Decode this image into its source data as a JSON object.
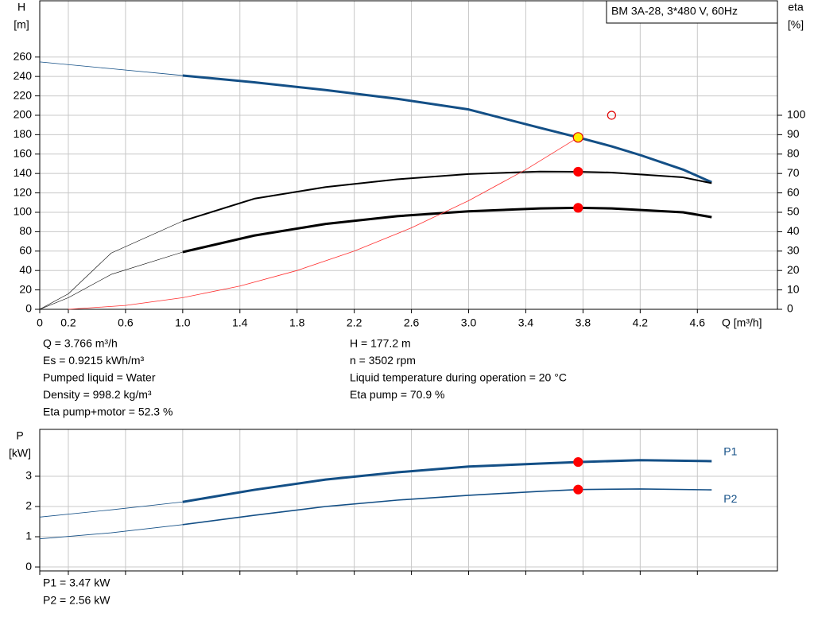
{
  "chart_data": [
    {
      "type": "line",
      "title": "BM 3A-28, 3*480 V, 60Hz",
      "ylabel": [
        "H",
        "[m]"
      ],
      "y2label": [
        "eta",
        "[%]"
      ],
      "xlabel": "Q [m³/h]",
      "xlim": [
        0,
        5.16
      ],
      "ylim": [
        0,
        318
      ],
      "y2lim": [
        0,
        159
      ],
      "grid": true,
      "xticks": [
        0,
        0.2,
        0.6,
        {
          "value": 1.0,
          "label": "1.0"
        },
        1.4,
        1.8,
        2.2,
        2.6,
        {
          "value": 3.0,
          "label": "3.0"
        },
        3.4,
        3.8,
        4.2,
        4.6
      ],
      "yticks": [
        0,
        20,
        40,
        60,
        80,
        100,
        120,
        140,
        160,
        180,
        200,
        220,
        240,
        260
      ],
      "y2ticks": [
        0,
        10,
        20,
        30,
        40,
        50,
        60,
        70,
        80,
        90,
        100
      ],
      "series": [
        {
          "color": "#134f86",
          "width": 0.8,
          "x": [
            0,
            0.5,
            1.0
          ],
          "values": [
            255,
            248,
            241
          ]
        },
        {
          "color": "#134f86",
          "width": 3,
          "x": [
            1.0,
            1.5,
            2.0,
            2.5,
            3.0,
            3.5,
            3.766,
            4.0,
            4.2,
            4.5,
            4.7
          ],
          "values": [
            241,
            234,
            226,
            217,
            206,
            187,
            177.2,
            168,
            159,
            144,
            131
          ]
        },
        {
          "color": "#000000",
          "width": 0.6,
          "axis": "y2",
          "x": [
            0,
            0.2,
            0.5,
            1.0
          ],
          "values": [
            0,
            8,
            29,
            45.5
          ]
        },
        {
          "color": "#000000",
          "width": 2,
          "axis": "y2",
          "x": [
            1.0,
            1.5,
            2.0,
            2.5,
            3.0,
            3.5,
            3.766,
            4.0,
            4.5,
            4.7
          ],
          "values": [
            45.5,
            57,
            63,
            67,
            69.7,
            71,
            70.9,
            70.5,
            68,
            65
          ]
        },
        {
          "color": "#000000",
          "width": 0.6,
          "axis": "y2",
          "x": [
            0,
            0.2,
            0.5,
            1.0
          ],
          "values": [
            0,
            6,
            18,
            29.5
          ]
        },
        {
          "color": "#000000",
          "width": 3,
          "axis": "y2",
          "x": [
            1.0,
            1.5,
            2.0,
            2.5,
            3.0,
            3.5,
            3.766,
            4.0,
            4.5,
            4.7
          ],
          "values": [
            29.5,
            38,
            44,
            48,
            50.5,
            52,
            52.3,
            52,
            50,
            47.5
          ]
        },
        {
          "color": "#ff3030",
          "width": 0.8,
          "x": [
            0.2,
            0.6,
            1.0,
            1.4,
            1.8,
            2.2,
            2.6,
            3.0,
            3.4,
            3.766
          ],
          "values": [
            0,
            4,
            12,
            24,
            40,
            60,
            84,
            112,
            144,
            177.2
          ]
        }
      ],
      "markers": [
        {
          "x": 3.766,
          "y": 70.9,
          "axis": "y2",
          "fill": "#ff0000",
          "stroke": "#ff0000",
          "r": 5.5
        },
        {
          "x": 3.766,
          "y": 52.3,
          "axis": "y2",
          "fill": "#ff0000",
          "stroke": "#ff0000",
          "r": 5.5
        },
        {
          "x": 4.0,
          "y": 200,
          "fill": "none",
          "stroke": "#e00000",
          "r": 5
        },
        {
          "x": 3.766,
          "y": 177.2,
          "fill": "#ffee00",
          "stroke": "#e00000",
          "r": 6
        }
      ]
    },
    {
      "type": "line",
      "ylabel": [
        "P",
        "[kW]"
      ],
      "xlim": [
        0,
        5.16
      ],
      "ylim": [
        -0.13,
        4.55
      ],
      "grid": true,
      "xtick_labels": false,
      "xticks": [
        0,
        0.2,
        0.6,
        1.0,
        1.4,
        1.8,
        2.2,
        2.6,
        3.0,
        3.4,
        3.8,
        4.2,
        4.6
      ],
      "yticks": [
        0,
        1,
        2,
        3
      ],
      "series": [
        {
          "color": "#134f86",
          "width": 0.8,
          "x": [
            0,
            0.5,
            1.0
          ],
          "values": [
            1.65,
            1.89,
            2.15
          ]
        },
        {
          "name": "P1",
          "label_pos": "above",
          "color": "#134f86",
          "width": 3,
          "x": [
            1.0,
            1.5,
            2.0,
            2.5,
            3.0,
            3.5,
            3.766,
            4.2,
            4.7
          ],
          "values": [
            2.15,
            2.55,
            2.89,
            3.13,
            3.32,
            3.42,
            3.47,
            3.53,
            3.5
          ]
        },
        {
          "color": "#134f86",
          "width": 0.8,
          "x": [
            0,
            0.5,
            1.0
          ],
          "values": [
            0.93,
            1.13,
            1.4
          ]
        },
        {
          "name": "P2",
          "label_pos": "below",
          "color": "#134f86",
          "width": 1.6,
          "x": [
            1.0,
            1.5,
            2.0,
            2.5,
            3.0,
            3.5,
            3.766,
            4.2,
            4.7
          ],
          "values": [
            1.4,
            1.71,
            2.0,
            2.21,
            2.37,
            2.5,
            2.56,
            2.58,
            2.55
          ]
        }
      ],
      "markers": [
        {
          "x": 3.766,
          "y": 3.47,
          "fill": "#ff0000",
          "stroke": "#ff0000",
          "r": 5.5
        },
        {
          "x": 3.766,
          "y": 2.56,
          "fill": "#ff0000",
          "stroke": "#ff0000",
          "r": 5.5
        }
      ]
    }
  ],
  "info": {
    "left": [
      "Q = 3.766 m³/h",
      "Es = 0.9215 kWh/m³",
      "Pumped liquid = Water",
      "Density = 998.2 kg/m³",
      "Eta pump+motor = 52.3 %"
    ],
    "right": [
      "H = 177.2 m",
      "n = 3502 rpm",
      "Liquid temperature during operation = 20 °C",
      "Eta pump = 70.9 %"
    ],
    "footer": [
      "P1 = 3.47 kW",
      "P2 = 2.56 kW"
    ]
  }
}
